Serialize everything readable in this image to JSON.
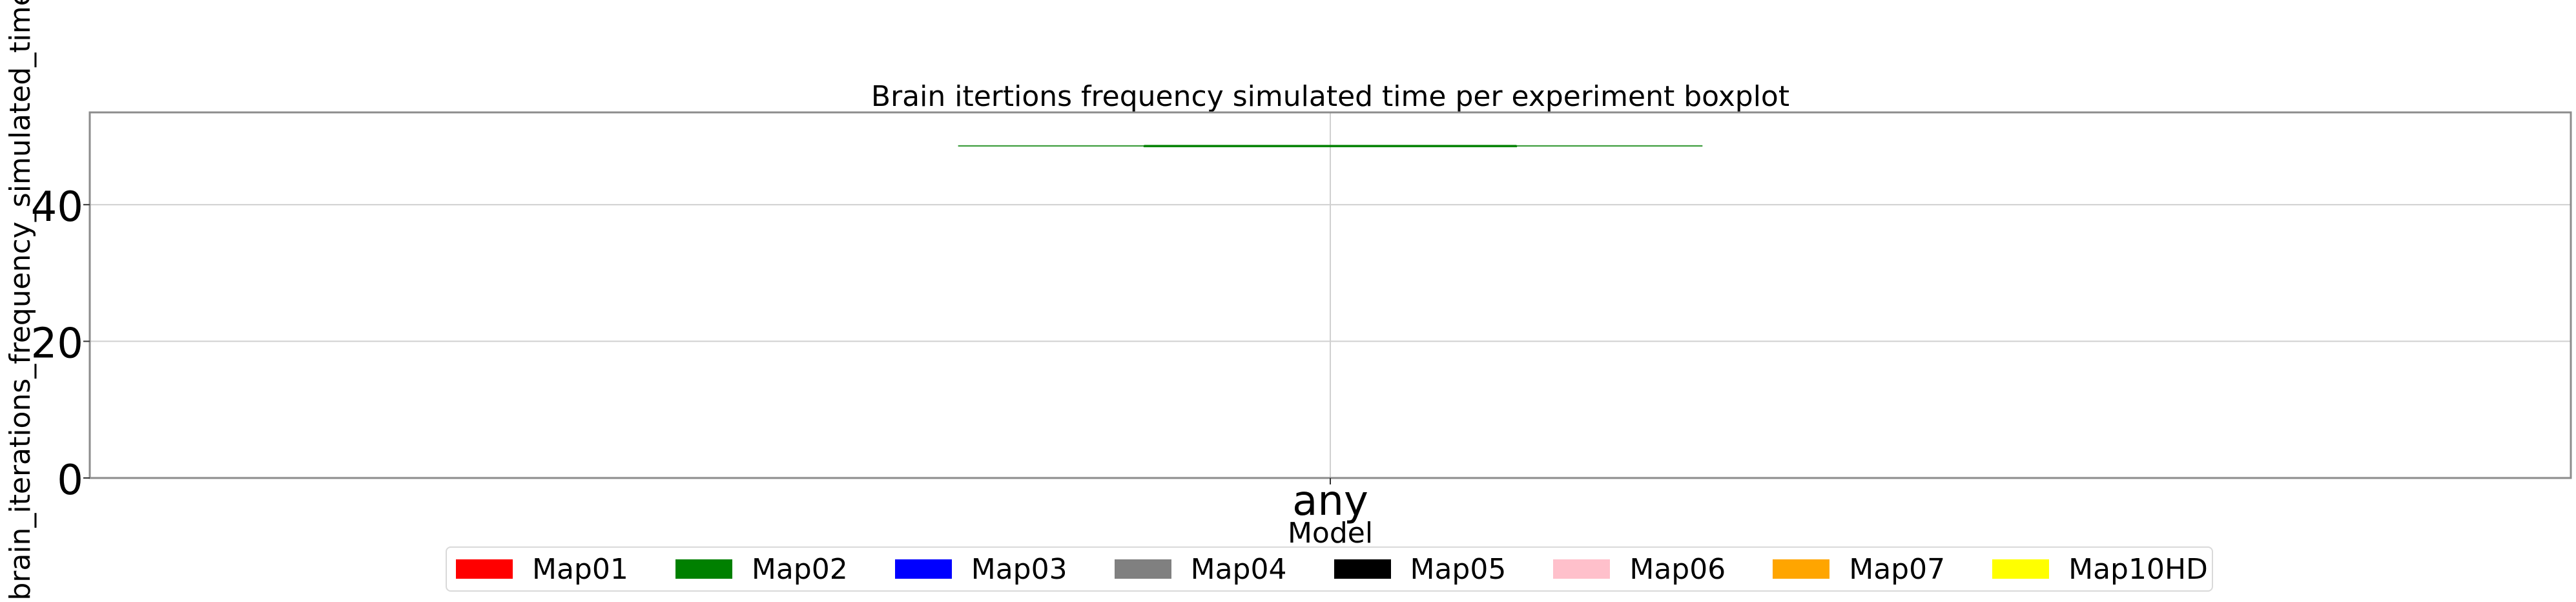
{
  "chart_data": {
    "type": "box",
    "title": "Brain itertions frequency simulated time per experiment boxplot",
    "xlabel": "Model",
    "ylabel": "brain_iterations_frequency_simulated_time",
    "categories": [
      "any"
    ],
    "ylim": [
      0,
      53.5
    ],
    "yticks": [
      0,
      20,
      40
    ],
    "grid": true,
    "legend_position": "bottom-center",
    "boxes": [
      {
        "category": "any",
        "series": "Map02",
        "min": 48.6,
        "q1": 48.6,
        "median": 48.6,
        "q3": 48.6,
        "max": 48.6,
        "color": "#008000"
      }
    ],
    "legend": [
      {
        "name": "Map01",
        "color": "#ff0000"
      },
      {
        "name": "Map02",
        "color": "#008000"
      },
      {
        "name": "Map03",
        "color": "#0000ff"
      },
      {
        "name": "Map04",
        "color": "#808080"
      },
      {
        "name": "Map05",
        "color": "#000000"
      },
      {
        "name": "Map06",
        "color": "#ffc0cb"
      },
      {
        "name": "Map07",
        "color": "#ffa500"
      },
      {
        "name": "Map10HD",
        "color": "#ffff00"
      }
    ]
  }
}
